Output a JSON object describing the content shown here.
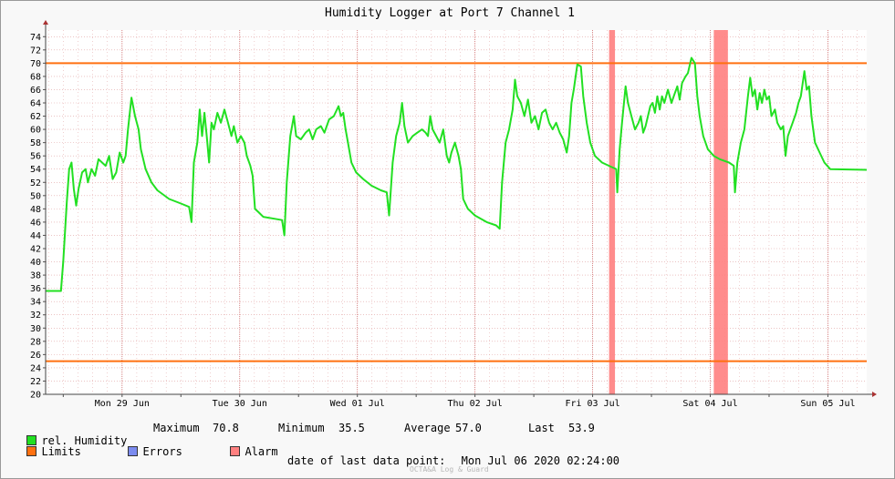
{
  "chart_data": {
    "type": "line",
    "title": "Humidity Logger at Port 7 Channel 1",
    "ylim": [
      20,
      75
    ],
    "y_ticks": [
      20,
      22,
      24,
      26,
      28,
      30,
      32,
      34,
      36,
      38,
      40,
      42,
      44,
      46,
      48,
      50,
      52,
      54,
      56,
      58,
      60,
      62,
      64,
      66,
      68,
      70,
      72,
      74
    ],
    "x_unit": "days since Mon 29 Jun 2020 00:00",
    "xlim": [
      -0.15,
      6.83
    ],
    "x_tick_labels": [
      "Mon 29 Jun",
      "Tue 30 Jun",
      "Wed 01 Jul",
      "Thu 02 Jul",
      "Fri 03 Jul",
      "Sat 04 Jul",
      "Sun 05 Jul"
    ],
    "limits": [
      70,
      25
    ],
    "alarms": [
      [
        4.64,
        4.69
      ],
      [
        5.53,
        5.65
      ]
    ],
    "grid": true,
    "colors": {
      "series": "#22e022",
      "limit": "#ff7010",
      "alarm": "#ff8080",
      "error": "#7b8bef",
      "grid": "#e0a0a0"
    },
    "series": [
      {
        "name": "rel. Humidity",
        "points": [
          [
            -0.15,
            35.6
          ],
          [
            -0.02,
            35.6
          ],
          [
            0.0,
            40
          ],
          [
            0.03,
            49
          ],
          [
            0.05,
            54
          ],
          [
            0.07,
            55
          ],
          [
            0.09,
            51
          ],
          [
            0.11,
            48.5
          ],
          [
            0.13,
            51
          ],
          [
            0.16,
            53.5
          ],
          [
            0.19,
            54
          ],
          [
            0.21,
            52
          ],
          [
            0.24,
            54
          ],
          [
            0.27,
            53
          ],
          [
            0.3,
            55.5
          ],
          [
            0.33,
            55
          ],
          [
            0.36,
            54.5
          ],
          [
            0.39,
            56
          ],
          [
            0.42,
            52.5
          ],
          [
            0.45,
            53.5
          ],
          [
            0.48,
            56.5
          ],
          [
            0.51,
            55
          ],
          [
            0.53,
            56
          ],
          [
            0.55,
            60
          ],
          [
            0.58,
            64.8
          ],
          [
            0.61,
            62
          ],
          [
            0.64,
            60
          ],
          [
            0.66,
            57
          ],
          [
            0.7,
            54
          ],
          [
            0.75,
            52
          ],
          [
            0.8,
            50.8
          ],
          [
            0.9,
            49.5
          ],
          [
            1.0,
            48.8
          ],
          [
            1.07,
            48.3
          ],
          [
            1.09,
            46
          ],
          [
            1.11,
            55
          ],
          [
            1.14,
            58
          ],
          [
            1.16,
            63
          ],
          [
            1.18,
            59
          ],
          [
            1.2,
            62.5
          ],
          [
            1.22,
            59
          ],
          [
            1.24,
            55
          ],
          [
            1.26,
            61
          ],
          [
            1.28,
            60
          ],
          [
            1.31,
            62.5
          ],
          [
            1.34,
            61
          ],
          [
            1.37,
            63
          ],
          [
            1.4,
            61
          ],
          [
            1.43,
            59
          ],
          [
            1.45,
            60.5
          ],
          [
            1.48,
            58
          ],
          [
            1.51,
            59
          ],
          [
            1.54,
            58
          ],
          [
            1.56,
            56
          ],
          [
            1.59,
            54.5
          ],
          [
            1.61,
            53
          ],
          [
            1.63,
            48
          ],
          [
            1.66,
            47.5
          ],
          [
            1.7,
            46.8
          ],
          [
            1.8,
            46.5
          ],
          [
            1.86,
            46.3
          ],
          [
            1.88,
            44
          ],
          [
            1.9,
            52
          ],
          [
            1.93,
            59
          ],
          [
            1.96,
            62
          ],
          [
            1.98,
            59
          ],
          [
            2.02,
            58.5
          ],
          [
            2.06,
            59.5
          ],
          [
            2.09,
            60
          ],
          [
            2.12,
            58.5
          ],
          [
            2.15,
            60
          ],
          [
            2.19,
            60.5
          ],
          [
            2.22,
            59.5
          ],
          [
            2.26,
            61.5
          ],
          [
            2.3,
            62
          ],
          [
            2.34,
            63.5
          ],
          [
            2.36,
            62
          ],
          [
            2.38,
            62.5
          ],
          [
            2.4,
            60
          ],
          [
            2.42,
            58
          ],
          [
            2.45,
            55
          ],
          [
            2.49,
            53.5
          ],
          [
            2.55,
            52.5
          ],
          [
            2.62,
            51.5
          ],
          [
            2.7,
            50.8
          ],
          [
            2.75,
            50.5
          ],
          [
            2.77,
            47
          ],
          [
            2.8,
            55
          ],
          [
            2.83,
            59
          ],
          [
            2.86,
            61
          ],
          [
            2.88,
            64
          ],
          [
            2.9,
            60.5
          ],
          [
            2.93,
            58
          ],
          [
            2.97,
            59
          ],
          [
            3.01,
            59.5
          ],
          [
            3.05,
            60
          ],
          [
            3.08,
            59.5
          ],
          [
            3.1,
            59
          ],
          [
            3.12,
            62
          ],
          [
            3.14,
            60
          ],
          [
            3.17,
            59
          ],
          [
            3.2,
            58
          ],
          [
            3.23,
            60
          ],
          [
            3.26,
            56
          ],
          [
            3.28,
            55
          ],
          [
            3.3,
            56.5
          ],
          [
            3.33,
            58
          ],
          [
            3.36,
            56
          ],
          [
            3.38,
            54
          ],
          [
            3.4,
            49.5
          ],
          [
            3.44,
            48
          ],
          [
            3.5,
            47
          ],
          [
            3.6,
            46
          ],
          [
            3.68,
            45.5
          ],
          [
            3.71,
            45
          ],
          [
            3.73,
            52
          ],
          [
            3.76,
            58
          ],
          [
            3.79,
            60
          ],
          [
            3.82,
            63
          ],
          [
            3.84,
            67.5
          ],
          [
            3.86,
            65
          ],
          [
            3.89,
            64
          ],
          [
            3.92,
            62
          ],
          [
            3.95,
            64.5
          ],
          [
            3.98,
            61
          ],
          [
            4.01,
            62
          ],
          [
            4.04,
            60
          ],
          [
            4.07,
            62.5
          ],
          [
            4.1,
            63
          ],
          [
            4.13,
            61
          ],
          [
            4.16,
            60
          ],
          [
            4.19,
            61
          ],
          [
            4.22,
            59.5
          ],
          [
            4.25,
            58.5
          ],
          [
            4.28,
            56.5
          ],
          [
            4.3,
            59
          ],
          [
            4.32,
            64
          ],
          [
            4.34,
            66
          ],
          [
            4.37,
            69.8
          ],
          [
            4.4,
            69.5
          ],
          [
            4.42,
            65
          ],
          [
            4.45,
            61
          ],
          [
            4.48,
            58
          ],
          [
            4.52,
            56
          ],
          [
            4.58,
            55
          ],
          [
            4.64,
            54.5
          ],
          [
            4.7,
            54
          ],
          [
            4.71,
            50.5
          ],
          [
            4.73,
            57
          ],
          [
            4.75,
            61
          ],
          [
            4.78,
            66.5
          ],
          [
            4.8,
            64
          ],
          [
            4.83,
            62
          ],
          [
            4.86,
            60
          ],
          [
            4.89,
            61
          ],
          [
            4.91,
            62
          ],
          [
            4.93,
            59.5
          ],
          [
            4.95,
            60.5
          ],
          [
            4.97,
            62
          ],
          [
            4.99,
            63.5
          ],
          [
            5.01,
            64
          ],
          [
            5.03,
            62.5
          ],
          [
            5.05,
            65
          ],
          [
            5.07,
            63
          ],
          [
            5.09,
            65
          ],
          [
            5.11,
            64
          ],
          [
            5.14,
            66
          ],
          [
            5.17,
            64
          ],
          [
            5.19,
            65
          ],
          [
            5.22,
            66.5
          ],
          [
            5.24,
            64.5
          ],
          [
            5.26,
            67
          ],
          [
            5.29,
            68
          ],
          [
            5.31,
            68.5
          ],
          [
            5.34,
            70.8
          ],
          [
            5.37,
            70
          ],
          [
            5.39,
            65
          ],
          [
            5.41,
            62
          ],
          [
            5.44,
            59
          ],
          [
            5.48,
            57
          ],
          [
            5.53,
            56
          ],
          [
            5.58,
            55.5
          ],
          [
            5.66,
            55
          ],
          [
            5.7,
            54.5
          ],
          [
            5.71,
            50.5
          ],
          [
            5.73,
            55
          ],
          [
            5.76,
            58
          ],
          [
            5.79,
            60
          ],
          [
            5.82,
            65
          ],
          [
            5.84,
            67.8
          ],
          [
            5.86,
            65
          ],
          [
            5.88,
            66
          ],
          [
            5.9,
            63
          ],
          [
            5.92,
            65.5
          ],
          [
            5.94,
            64
          ],
          [
            5.96,
            66
          ],
          [
            5.98,
            64.5
          ],
          [
            6.0,
            65
          ],
          [
            6.02,
            62
          ],
          [
            6.05,
            63
          ],
          [
            6.07,
            61
          ],
          [
            6.1,
            60
          ],
          [
            6.12,
            60.5
          ],
          [
            6.14,
            56
          ],
          [
            6.16,
            59
          ],
          [
            6.18,
            60
          ],
          [
            6.2,
            61
          ],
          [
            6.23,
            62.5
          ],
          [
            6.25,
            64
          ],
          [
            6.27,
            65
          ],
          [
            6.3,
            68.8
          ],
          [
            6.32,
            66
          ],
          [
            6.34,
            66.5
          ],
          [
            6.36,
            62
          ],
          [
            6.39,
            58
          ],
          [
            6.43,
            56.5
          ],
          [
            6.47,
            55
          ],
          [
            6.52,
            54
          ],
          [
            6.83,
            53.9
          ]
        ]
      }
    ]
  },
  "legend": {
    "series_label": "rel. Humidity",
    "max_label": "Maximum",
    "max_value": "70.8",
    "min_label": "Minimum",
    "min_value": "35.5",
    "avg_label": "Average",
    "avg_value": "57.0",
    "last_label": "Last",
    "last_value": "53.9",
    "limits_label": "Limits",
    "errors_label": "Errors",
    "alarm_label": "Alarm"
  },
  "footer": {
    "last_point_label": "date of last data point:",
    "last_point_value": "Mon Jul 06 2020 02:24:00",
    "watermark": "OCTA&A Log & Guard"
  }
}
